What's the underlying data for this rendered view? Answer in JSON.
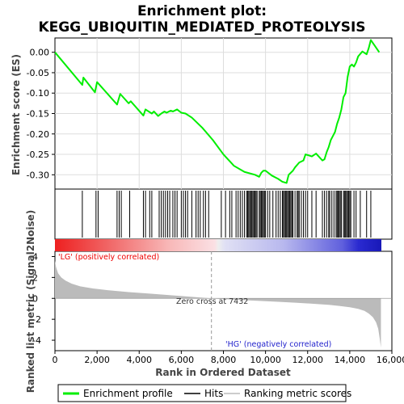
{
  "chart_data": {
    "type": "line",
    "title_line1": "Enrichment plot:",
    "title_line2": "KEGG_UBIQUITIN_MEDIATED_PROTEOLYSIS",
    "xlabel": "Rank in Ordered Dataset",
    "ylabel_top": "Enrichment score (ES)",
    "ylabel_bottom": "Ranked list metric (Signal2Noise)",
    "xlim": [
      0,
      16000
    ],
    "es_ylim": [
      -0.335,
      0.035
    ],
    "metric_ylim": [
      -5,
      4.5
    ],
    "x_ticks": [
      0,
      2000,
      4000,
      6000,
      8000,
      10000,
      12000,
      14000,
      16000
    ],
    "x_tick_labels": [
      "0",
      "2,000",
      "4,000",
      "6,000",
      "8,000",
      "10,000",
      "12,000",
      "14,000",
      "16,000"
    ],
    "es_ticks": [
      0.0,
      -0.05,
      -0.1,
      -0.15,
      -0.2,
      -0.25,
      -0.3
    ],
    "es_tick_labels": [
      "0.00",
      "-0.05",
      "-0.10",
      "-0.15",
      "-0.20",
      "-0.25",
      "-0.30"
    ],
    "metric_ticks": [
      4,
      2,
      0,
      -2,
      -4
    ],
    "metric_tick_labels": [
      "4",
      "2",
      "0",
      "-2",
      "-4"
    ],
    "es_profile": {
      "x": [
        0,
        1300,
        1350,
        1900,
        2000,
        2950,
        3100,
        3500,
        3600,
        4200,
        4300,
        4600,
        4700,
        4900,
        5050,
        5200,
        5300,
        5500,
        5600,
        5800,
        6000,
        6200,
        6500,
        7000,
        7500,
        8000,
        8500,
        9000,
        9500,
        9700,
        9800,
        9900,
        10000,
        10300,
        10600,
        10800,
        11000,
        11100,
        11300,
        11400,
        11600,
        11800,
        11900,
        12200,
        12400,
        12700,
        12800,
        12900,
        13000,
        13100,
        13200,
        13300,
        13400,
        13500,
        13600,
        13700,
        13800,
        13900,
        14000,
        14100,
        14200,
        14300,
        14400,
        14600,
        14800,
        14900,
        15000,
        15200,
        15400
      ],
      "y": [
        0.0,
        -0.08,
        -0.062,
        -0.098,
        -0.073,
        -0.128,
        -0.102,
        -0.125,
        -0.12,
        -0.155,
        -0.14,
        -0.15,
        -0.145,
        -0.156,
        -0.15,
        -0.145,
        -0.148,
        -0.143,
        -0.145,
        -0.14,
        -0.148,
        -0.15,
        -0.16,
        -0.185,
        -0.215,
        -0.25,
        -0.278,
        -0.293,
        -0.3,
        -0.305,
        -0.295,
        -0.29,
        -0.29,
        -0.302,
        -0.31,
        -0.317,
        -0.32,
        -0.3,
        -0.29,
        -0.282,
        -0.27,
        -0.265,
        -0.25,
        -0.255,
        -0.248,
        -0.265,
        -0.262,
        -0.245,
        -0.232,
        -0.215,
        -0.205,
        -0.195,
        -0.175,
        -0.16,
        -0.14,
        -0.11,
        -0.1,
        -0.06,
        -0.035,
        -0.03,
        -0.035,
        -0.025,
        -0.01,
        0.002,
        -0.005,
        0.01,
        0.03,
        0.015,
        0.0
      ]
    },
    "hits": [
      1300,
      1950,
      2050,
      2950,
      3050,
      3150,
      3550,
      4200,
      4300,
      4500,
      4600,
      4950,
      5050,
      5150,
      5250,
      5350,
      5450,
      5600,
      5700,
      5800,
      6000,
      6100,
      6200,
      6300,
      6500,
      6700,
      6800,
      6900,
      7050,
      7150,
      7300,
      7900,
      8100,
      8300,
      8400,
      8600,
      8700,
      8800,
      8900,
      9000,
      9100,
      9150,
      9200,
      9250,
      9300,
      9350,
      9400,
      9450,
      9500,
      9550,
      9600,
      9700,
      9750,
      9800,
      9850,
      9900,
      9950,
      10000,
      10100,
      10200,
      10350,
      10500,
      10600,
      10700,
      10800,
      10850,
      10900,
      10950,
      11000,
      11050,
      11100,
      11150,
      11200,
      11250,
      11300,
      11400,
      11500,
      11550,
      11600,
      11700,
      11800,
      11900,
      12000,
      12200,
      12400,
      12700,
      12800,
      12900,
      13000,
      13050,
      13150,
      13250,
      13350,
      13400,
      13450,
      13500,
      13550,
      13600,
      13700,
      13750,
      13800,
      13850,
      13900,
      13950,
      14000,
      14050,
      14200,
      14300,
      14500,
      14800,
      15000
    ],
    "metric": {
      "x": [
        0,
        50,
        150,
        300,
        500,
        800,
        1200,
        1800,
        2500,
        3500,
        4500,
        5500,
        6500,
        7432,
        8500,
        9500,
        10500,
        11500,
        12500,
        13000,
        13500,
        14000,
        14400,
        14700,
        14900,
        15100,
        15250,
        15350,
        15420,
        15480
      ],
      "y": [
        3.6,
        3.0,
        2.4,
        2.0,
        1.7,
        1.4,
        1.15,
        0.95,
        0.78,
        0.6,
        0.45,
        0.3,
        0.15,
        0.0,
        -0.12,
        -0.22,
        -0.32,
        -0.42,
        -0.55,
        -0.62,
        -0.72,
        -0.85,
        -1.0,
        -1.2,
        -1.45,
        -1.8,
        -2.3,
        -2.9,
        -3.8,
        -4.7
      ]
    },
    "zero_cross_label": "Zero cross at 7432",
    "zero_cross": 7432,
    "pos_label": "'LG' (positively correlated)",
    "neg_label": "'HG' (negatively correlated)",
    "legend": [
      {
        "label": "Enrichment profile",
        "color": "#00ee00"
      },
      {
        "label": "Hits",
        "color": "#000000"
      },
      {
        "label": "Ranking metric scores",
        "color": "#bbbbbb"
      }
    ],
    "colors": {
      "es_line": "#00ee00",
      "metric_fill": "#bbbbbb",
      "pos_text": "#ee0000",
      "neg_text": "#2222cc"
    }
  }
}
